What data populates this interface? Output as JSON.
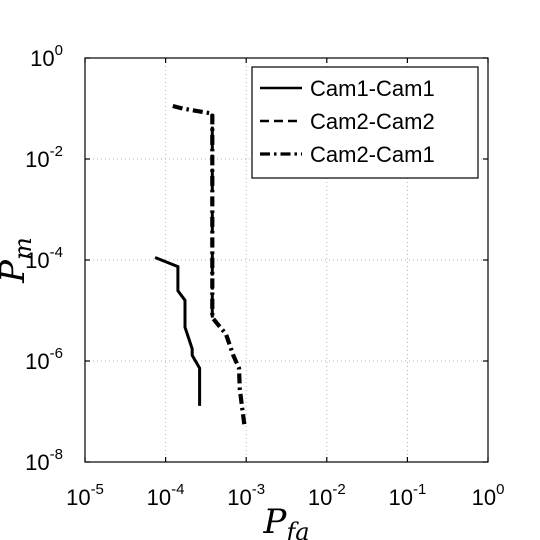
{
  "chart_data": {
    "type": "line",
    "title": "",
    "xlabel": "P_fa",
    "ylabel": "P_m",
    "x_scale": "log",
    "y_scale": "log",
    "xlim": [
      1e-05,
      1
    ],
    "ylim": [
      1e-08,
      1
    ],
    "grid": true,
    "legend_position": "top-right",
    "x_tick_labels": [
      {
        "base": "10",
        "exp": "-5",
        "value": 1e-05
      },
      {
        "base": "10",
        "exp": "-4",
        "value": 0.0001
      },
      {
        "base": "10",
        "exp": "-3",
        "value": 0.001
      },
      {
        "base": "10",
        "exp": "-2",
        "value": 0.01
      },
      {
        "base": "10",
        "exp": "-1",
        "value": 0.1
      },
      {
        "base": "10",
        "exp": "0",
        "value": 1
      }
    ],
    "y_tick_labels": [
      {
        "base": "10",
        "exp": "-8",
        "value": 1e-08
      },
      {
        "base": "10",
        "exp": "-6",
        "value": 1e-06
      },
      {
        "base": "10",
        "exp": "-4",
        "value": 0.0001
      },
      {
        "base": "10",
        "exp": "-2",
        "value": 0.01
      },
      {
        "base": "10",
        "exp": "0",
        "value": 1
      }
    ],
    "series": [
      {
        "name": "Cam1-Cam1",
        "style": "solid",
        "color": "#000000",
        "points": [
          [
            7.41e-05,
            0.000112
          ],
          [
            0.000142,
            7.41e-05
          ],
          [
            0.000142,
            2.45e-05
          ],
          [
            0.000174,
            1.59e-05
          ],
          [
            0.000174,
            4.68e-06
          ],
          [
            0.000214,
            1.74e-06
          ],
          [
            0.000214,
            1.29e-06
          ],
          [
            0.000264,
            7.24e-07
          ],
          [
            0.000264,
            1.29e-07
          ]
        ]
      },
      {
        "name": "Cam2-Cam2",
        "style": "dashed",
        "color": "#000000",
        "points": [
          [
            0.00038,
            7.24e-06
          ],
          [
            0.00038,
            0.0794
          ]
        ]
      },
      {
        "name": "Cam2-Cam1",
        "style": "dashdot",
        "color": "#000000",
        "points": [
          [
            0.000123,
            0.112
          ],
          [
            0.000162,
            0.1
          ],
          [
            0.00038,
            0.0794
          ],
          [
            0.00038,
            7.24e-06
          ],
          [
            0.000562,
            3.39e-06
          ],
          [
            0.000692,
            1.29e-06
          ],
          [
            0.000813,
            7.24e-07
          ],
          [
            0.000832,
            2.75e-07
          ],
          [
            0.000955,
            5.01e-08
          ]
        ]
      }
    ]
  }
}
